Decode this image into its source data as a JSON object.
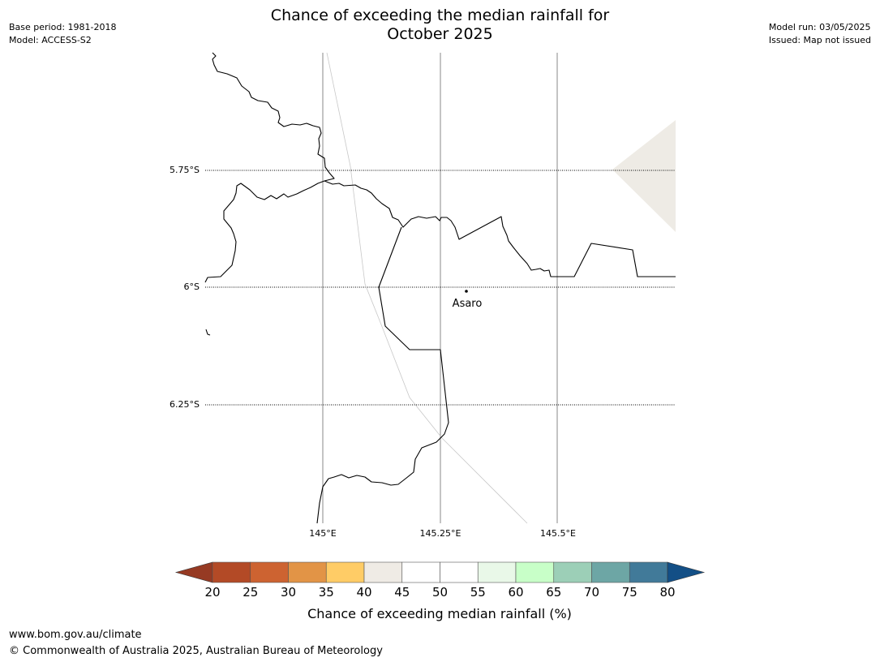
{
  "title": {
    "line1": "Chance of exceeding the median rainfall for",
    "line2": "October 2025"
  },
  "meta": {
    "base_period": "Base period: 1981-2018",
    "model": "Model: ACCESS-S2",
    "model_run": "Model run: 03/05/2025",
    "issued": "Issued: Map not issued"
  },
  "map": {
    "lat_labels": [
      "5.75°S",
      "6°S",
      "6.25°S"
    ],
    "lon_labels": [
      "145°E",
      "145.25°E",
      "145.5°E"
    ],
    "place": {
      "name": "Asaro"
    },
    "shaded_region_color": "#eeebe5",
    "coast_color": "#000000",
    "grid_color": "#8a8a8a"
  },
  "colorbar": {
    "label": "Chance of exceeding median rainfall (%)",
    "ticks": [
      "20",
      "25",
      "30",
      "35",
      "40",
      "45",
      "50",
      "55",
      "60",
      "65",
      "70",
      "75",
      "80"
    ],
    "under_color": "#963a23",
    "over_color": "#134f86",
    "colors": [
      "#b34a26",
      "#cd6331",
      "#e29446",
      "#ffcc66",
      "#efebe5",
      "#ffffff",
      "#ffffff",
      "#e9f8e8",
      "#c8ffc8",
      "#9ccfb7",
      "#6da6a5",
      "#417a99"
    ]
  },
  "footer": {
    "url": "www.bom.gov.au/climate",
    "copyright": "© Commonwealth of Australia 2025, Australian Bureau of Meteorology"
  }
}
